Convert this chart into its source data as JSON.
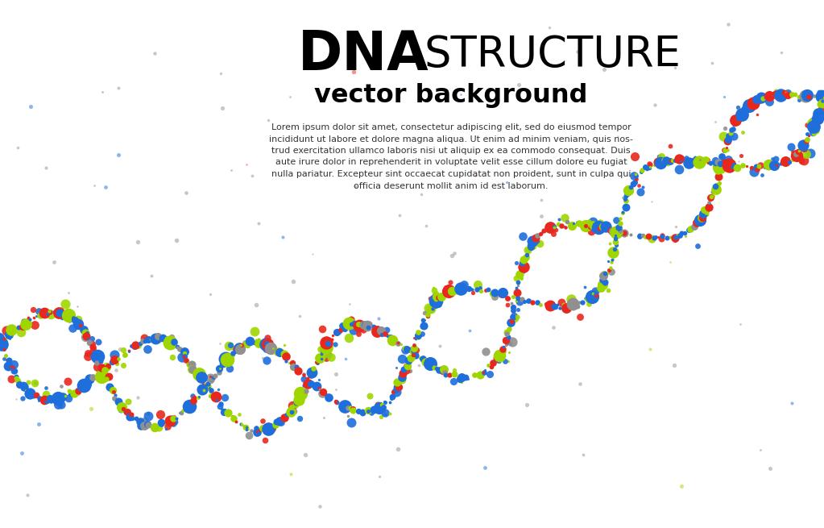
{
  "title_dna": "DNA",
  "title_structure": "STRUCTURE",
  "subtitle": "vector background",
  "body_text": "Lorem ipsum dolor sit amet, consectetur adipiscing elit, sed do eiusmod tempor\nincididunt ut labore et dolore magna aliqua. Ut enim ad minim veniam, quis nos-\ntrud exercitation ullamco laboris nisi ut aliquip ex ea commodo consequat. Duis\naute irure dolor in reprehenderit in voluptate velit esse cillum dolore eu fugiat\nnulla pariatur. Excepteur sint occaecat cupidatat non proident, sunt in culpa qui\nofficia deserunt mollit anim id est laborum.",
  "bg_color": "#ffffff",
  "colors": {
    "blue": "#1e6fdc",
    "red": "#e8281e",
    "green": "#9fd600",
    "gray": "#909090",
    "yellow": "#f0d800"
  },
  "seed": 42
}
